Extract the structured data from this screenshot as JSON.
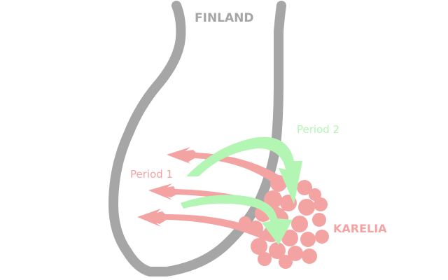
{
  "labels": {
    "region_finland": "FINLAND",
    "region_karelia": "KARELIA",
    "period_1": "Period 1",
    "period_2": "Period 2"
  },
  "colors": {
    "border": "#a6a6a6",
    "period_1": "#f4a3a3",
    "period_2": "#b3f5b3",
    "karelia": "#f4a3a3",
    "background": "#ffffff"
  }
}
